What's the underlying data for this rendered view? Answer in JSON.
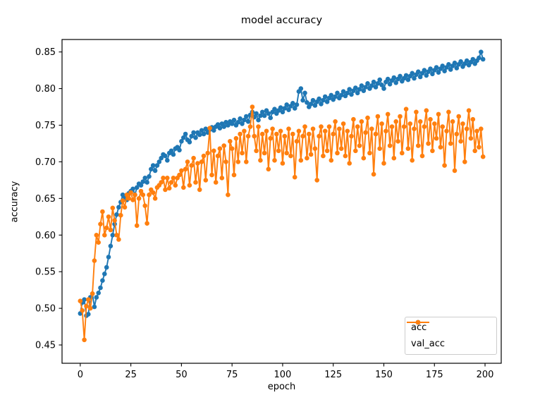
{
  "figure": {
    "title": "model accuracy",
    "xlabel": "epoch",
    "ylabel": "accuracy"
  },
  "legend": {
    "position": "lower right",
    "entries": [
      "acc",
      "val_acc"
    ]
  },
  "chart_data": {
    "type": "line",
    "title": "model accuracy",
    "xlabel": "epoch",
    "ylabel": "accuracy",
    "xlim": [
      -9,
      208
    ],
    "ylim": [
      0.425,
      0.867
    ],
    "xticks": [
      0,
      25,
      50,
      75,
      100,
      125,
      150,
      175,
      200
    ],
    "yticks": [
      0.45,
      0.5,
      0.55,
      0.6,
      0.65,
      0.7,
      0.75,
      0.8,
      0.85
    ],
    "grid": false,
    "legend_position": "lower right",
    "marker": "circle",
    "x_start": 0,
    "x_step": 1,
    "series": [
      {
        "name": "acc",
        "color": "#1f77b4",
        "values": [
          0.493,
          0.508,
          0.512,
          0.49,
          0.492,
          0.515,
          0.52,
          0.502,
          0.515,
          0.521,
          0.528,
          0.538,
          0.547,
          0.556,
          0.57,
          0.585,
          0.6,
          0.615,
          0.628,
          0.638,
          0.645,
          0.655,
          0.652,
          0.648,
          0.657,
          0.66,
          0.663,
          0.655,
          0.665,
          0.67,
          0.668,
          0.673,
          0.678,
          0.672,
          0.68,
          0.69,
          0.695,
          0.688,
          0.695,
          0.7,
          0.705,
          0.71,
          0.708,
          0.702,
          0.712,
          0.715,
          0.71,
          0.718,
          0.72,
          0.716,
          0.728,
          0.733,
          0.738,
          0.73,
          0.727,
          0.735,
          0.74,
          0.733,
          0.74,
          0.737,
          0.743,
          0.738,
          0.745,
          0.74,
          0.744,
          0.747,
          0.743,
          0.748,
          0.751,
          0.746,
          0.752,
          0.748,
          0.754,
          0.75,
          0.755,
          0.752,
          0.757,
          0.75,
          0.754,
          0.759,
          0.752,
          0.757,
          0.762,
          0.755,
          0.764,
          0.768,
          0.761,
          0.766,
          0.757,
          0.763,
          0.768,
          0.763,
          0.77,
          0.766,
          0.76,
          0.768,
          0.772,
          0.766,
          0.77,
          0.774,
          0.768,
          0.773,
          0.778,
          0.771,
          0.776,
          0.78,
          0.773,
          0.778,
          0.796,
          0.8,
          0.784,
          0.794,
          0.781,
          0.775,
          0.779,
          0.784,
          0.777,
          0.782,
          0.786,
          0.779,
          0.784,
          0.789,
          0.782,
          0.787,
          0.791,
          0.785,
          0.789,
          0.794,
          0.787,
          0.791,
          0.796,
          0.79,
          0.794,
          0.799,
          0.792,
          0.797,
          0.801,
          0.794,
          0.799,
          0.804,
          0.797,
          0.802,
          0.807,
          0.8,
          0.804,
          0.809,
          0.802,
          0.807,
          0.812,
          0.805,
          0.8,
          0.809,
          0.813,
          0.806,
          0.811,
          0.815,
          0.808,
          0.813,
          0.817,
          0.81,
          0.814,
          0.818,
          0.812,
          0.817,
          0.821,
          0.814,
          0.819,
          0.823,
          0.816,
          0.821,
          0.825,
          0.818,
          0.823,
          0.827,
          0.82,
          0.825,
          0.829,
          0.822,
          0.827,
          0.831,
          0.824,
          0.829,
          0.833,
          0.826,
          0.831,
          0.835,
          0.828,
          0.833,
          0.837,
          0.83,
          0.834,
          0.838,
          0.832,
          0.836,
          0.84,
          0.834,
          0.838,
          0.842,
          0.85,
          0.84
        ]
      },
      {
        "name": "val_acc",
        "color": "#ff7f0e",
        "values": [
          0.51,
          0.497,
          0.457,
          0.503,
          0.512,
          0.5,
          0.52,
          0.565,
          0.6,
          0.59,
          0.615,
          0.632,
          0.6,
          0.61,
          0.625,
          0.607,
          0.637,
          0.62,
          0.6,
          0.594,
          0.627,
          0.647,
          0.638,
          0.655,
          0.65,
          0.658,
          0.648,
          0.655,
          0.613,
          0.65,
          0.66,
          0.655,
          0.64,
          0.616,
          0.655,
          0.662,
          0.658,
          0.65,
          0.665,
          0.668,
          0.672,
          0.678,
          0.662,
          0.678,
          0.664,
          0.672,
          0.678,
          0.668,
          0.678,
          0.682,
          0.688,
          0.665,
          0.69,
          0.7,
          0.668,
          0.695,
          0.705,
          0.672,
          0.698,
          0.662,
          0.7,
          0.708,
          0.675,
          0.712,
          0.746,
          0.682,
          0.715,
          0.672,
          0.708,
          0.718,
          0.678,
          0.722,
          0.7,
          0.655,
          0.728,
          0.718,
          0.682,
          0.732,
          0.7,
          0.738,
          0.712,
          0.742,
          0.7,
          0.735,
          0.748,
          0.775,
          0.735,
          0.715,
          0.748,
          0.702,
          0.738,
          0.712,
          0.742,
          0.69,
          0.732,
          0.745,
          0.702,
          0.738,
          0.715,
          0.742,
          0.698,
          0.735,
          0.712,
          0.745,
          0.708,
          0.738,
          0.679,
          0.728,
          0.742,
          0.702,
          0.735,
          0.748,
          0.705,
          0.738,
          0.71,
          0.745,
          0.718,
          0.675,
          0.735,
          0.748,
          0.708,
          0.742,
          0.715,
          0.748,
          0.702,
          0.738,
          0.755,
          0.712,
          0.745,
          0.718,
          0.752,
          0.708,
          0.742,
          0.698,
          0.735,
          0.758,
          0.715,
          0.748,
          0.722,
          0.755,
          0.705,
          0.74,
          0.76,
          0.712,
          0.745,
          0.683,
          0.738,
          0.762,
          0.718,
          0.752,
          0.698,
          0.742,
          0.765,
          0.722,
          0.748,
          0.705,
          0.755,
          0.728,
          0.762,
          0.712,
          0.748,
          0.772,
          0.718,
          0.752,
          0.702,
          0.745,
          0.768,
          0.722,
          0.755,
          0.708,
          0.748,
          0.77,
          0.725,
          0.758,
          0.715,
          0.752,
          0.732,
          0.765,
          0.72,
          0.748,
          0.695,
          0.742,
          0.768,
          0.725,
          0.755,
          0.688,
          0.738,
          0.762,
          0.728,
          0.752,
          0.7,
          0.745,
          0.77,
          0.732,
          0.758,
          0.715,
          0.742,
          0.72,
          0.745,
          0.707
        ]
      }
    ]
  }
}
